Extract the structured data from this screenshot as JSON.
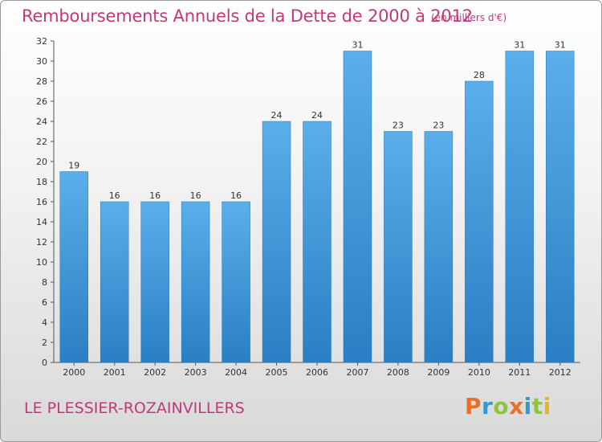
{
  "page": {
    "commune": "LE PLESSIER-ROZAINVILLERS",
    "logo_letters": [
      {
        "ch": "P",
        "color": "#e8702a"
      },
      {
        "ch": "r",
        "color": "#2f9ad4"
      },
      {
        "ch": "o",
        "color": "#8cc63f"
      },
      {
        "ch": "x",
        "color": "#e8702a"
      },
      {
        "ch": "i",
        "color": "#2f9ad4"
      },
      {
        "ch": "t",
        "color": "#8cc63f"
      },
      {
        "ch": "i",
        "color": "#e8b420"
      }
    ]
  },
  "chart_data": {
    "type": "bar",
    "title": "Remboursements Annuels de la Dette de 2000 à 2012",
    "subtitle": "(en milliers d'€)",
    "categories": [
      "2000",
      "2001",
      "2002",
      "2003",
      "2004",
      "2005",
      "2006",
      "2007",
      "2008",
      "2009",
      "2010",
      "2011",
      "2012"
    ],
    "values": [
      19,
      16,
      16,
      16,
      16,
      24,
      24,
      31,
      23,
      23,
      28,
      31,
      31
    ],
    "ylim": [
      0,
      32
    ],
    "yticks": [
      0,
      2,
      4,
      6,
      8,
      10,
      12,
      14,
      16,
      18,
      20,
      22,
      24,
      26,
      28,
      30,
      32
    ],
    "grid": false,
    "bar_color": "#3e95d8",
    "title_color": "#c0397a"
  }
}
